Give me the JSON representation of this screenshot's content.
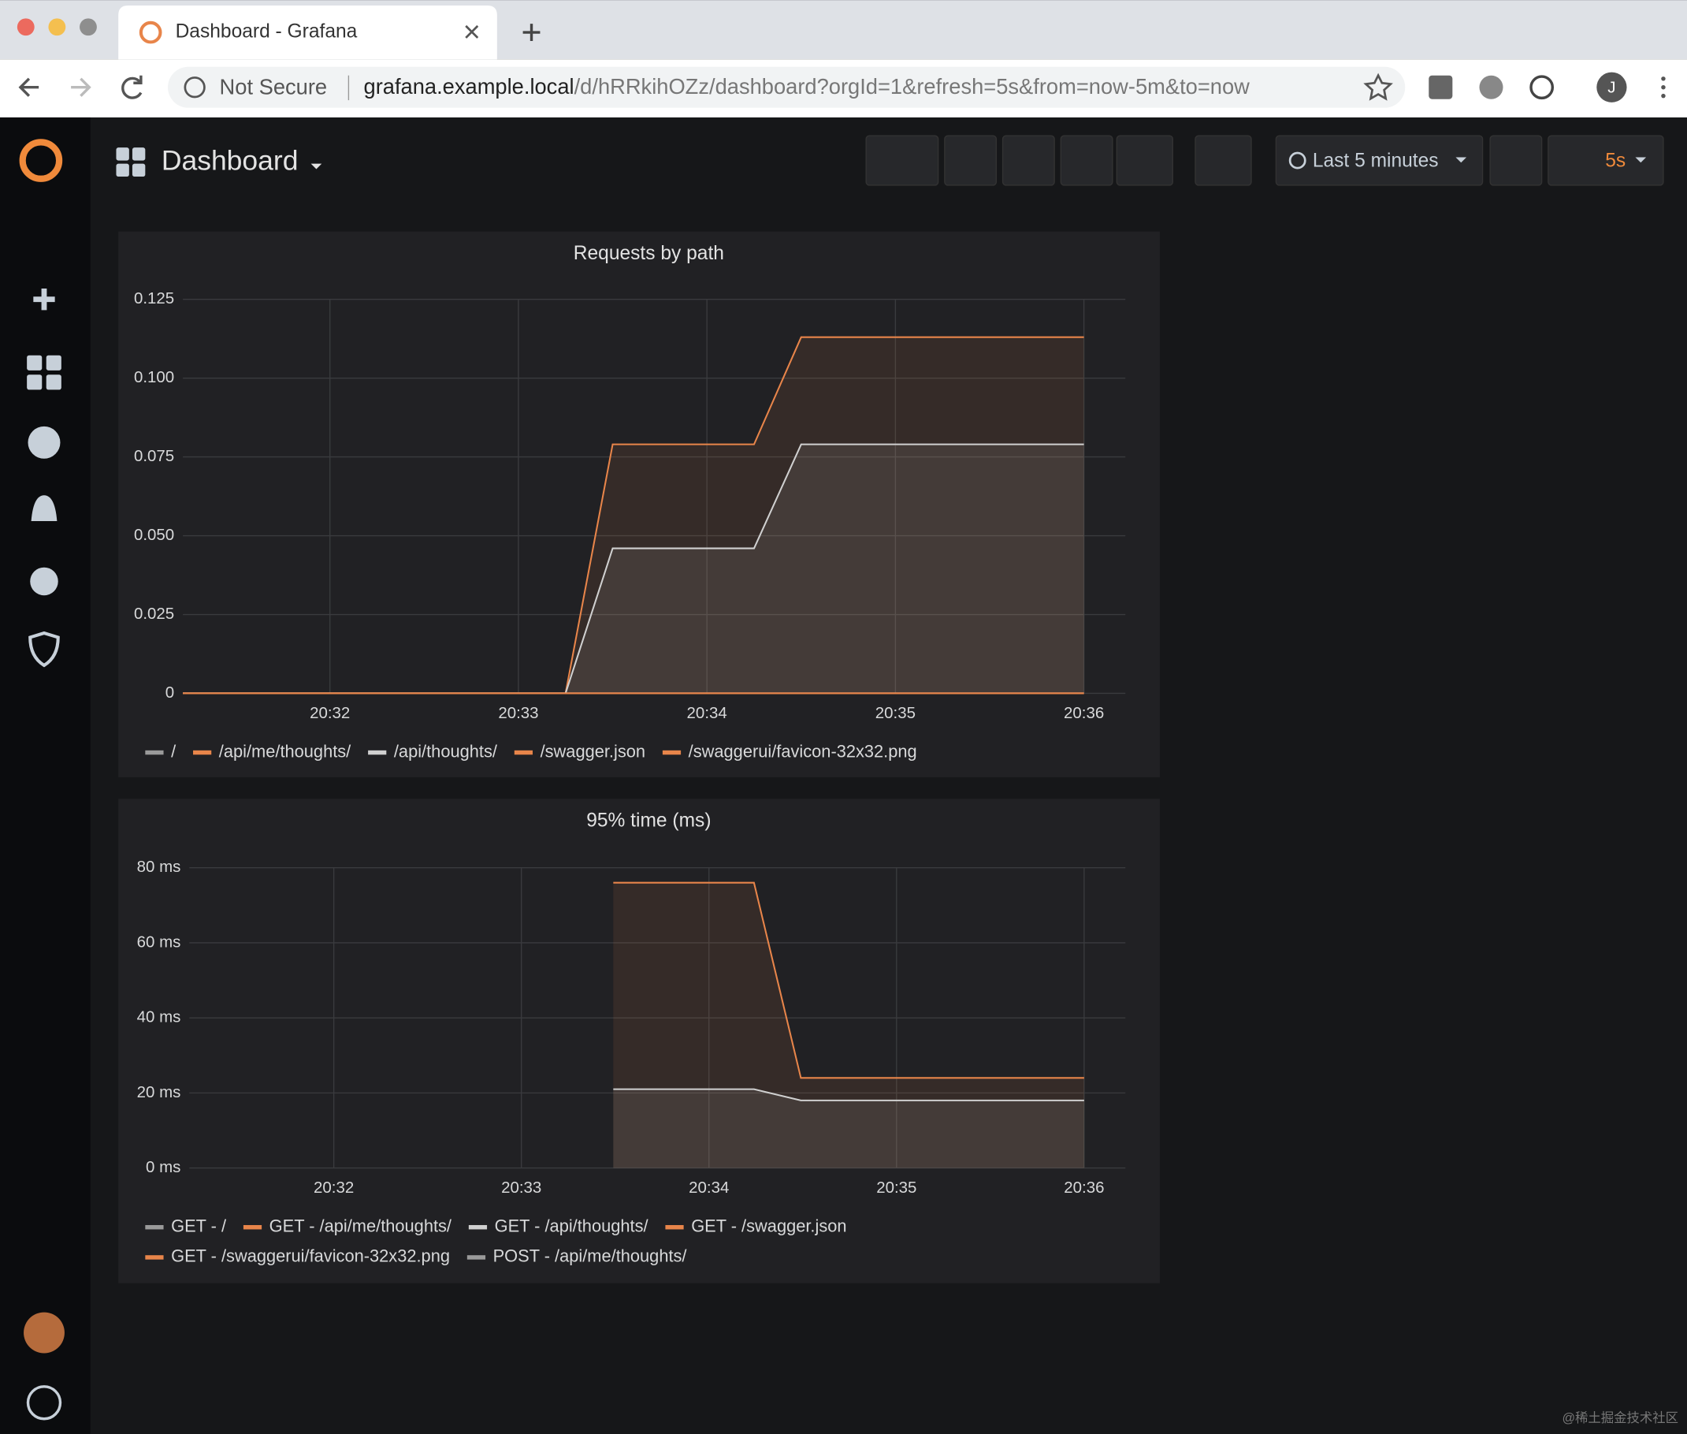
{
  "browser": {
    "tab_title": "Dashboard - Grafana",
    "not_secure": "Not Secure",
    "url_host": "grafana.example.local",
    "url_path": "/d/hRRkihOZz/dashboard?orgId=1&refresh=5s&from=now-5m&to=now",
    "avatar": "J"
  },
  "dashboard": {
    "title": "Dashboard",
    "time_range": "Last 5 minutes",
    "refresh": "5s"
  },
  "watermark": "@稀土掘金技术社区",
  "chart_data": [
    {
      "type": "line",
      "title": "Requests by path",
      "grid": true,
      "fill": true,
      "x": [
        31.22,
        33.25,
        33.5,
        34.25,
        34.5,
        36.0
      ],
      "xlim": [
        31.22,
        36.22
      ],
      "xticks": [
        {
          "value": 32,
          "label": "20:32"
        },
        {
          "value": 33,
          "label": "20:33"
        },
        {
          "value": 34,
          "label": "20:34"
        },
        {
          "value": 35,
          "label": "20:35"
        },
        {
          "value": 36,
          "label": "20:36"
        }
      ],
      "ylim": [
        0,
        0.125
      ],
      "yticks": [
        0,
        0.025,
        {
          "value": 0.05,
          "label": "0.050"
        },
        0.075,
        {
          "value": 0.1,
          "label": "0.100"
        },
        0.125
      ],
      "series": [
        {
          "name": "/",
          "color": "#9a9a9a",
          "values": [
            0,
            0,
            0,
            0,
            0,
            0
          ]
        },
        {
          "name": "/api/me/thoughts/",
          "color": "#e8854a",
          "values": [
            0,
            0,
            0.079,
            0.079,
            0.113,
            0.113
          ]
        },
        {
          "name": "/api/thoughts/",
          "color": "#d0d0d0",
          "values": [
            0,
            0,
            0.046,
            0.046,
            0.079,
            0.079
          ]
        },
        {
          "name": "/swagger.json",
          "color": "#e8854a",
          "values": [
            0,
            0,
            0,
            0,
            0,
            0
          ]
        },
        {
          "name": "/swaggerui/favicon-32x32.png",
          "color": "#e8854a",
          "values": [
            0,
            0,
            0,
            0,
            0,
            0
          ]
        }
      ]
    },
    {
      "type": "line",
      "title": "95% time (ms)",
      "grid": true,
      "fill": true,
      "x": [
        33.49,
        34.24,
        34.49,
        36.0
      ],
      "xlim": [
        31.23,
        36.22
      ],
      "xticks": [
        {
          "value": 32,
          "label": "20:32"
        },
        {
          "value": 33,
          "label": "20:33"
        },
        {
          "value": 34,
          "label": "20:34"
        },
        {
          "value": 35,
          "label": "20:35"
        },
        {
          "value": 36,
          "label": "20:36"
        }
      ],
      "ylim": [
        0,
        80
      ],
      "yticks": [
        {
          "value": 0,
          "label": "0 ms"
        },
        {
          "value": 20,
          "label": "20 ms"
        },
        {
          "value": 40,
          "label": "40 ms"
        },
        {
          "value": 60,
          "label": "60 ms"
        },
        {
          "value": 80,
          "label": "80 ms"
        }
      ],
      "series": [
        {
          "name": "GET - /",
          "color": "#9a9a9a",
          "values": [
            null,
            null,
            null,
            null
          ]
        },
        {
          "name": "GET - /api/me/thoughts/",
          "color": "#e8854a",
          "values": [
            76,
            76,
            24,
            24
          ]
        },
        {
          "name": "GET - /api/thoughts/",
          "color": "#d0d0d0",
          "values": [
            21,
            21,
            18,
            18
          ]
        },
        {
          "name": "GET - /swagger.json",
          "color": "#e8854a",
          "values": [
            null,
            null,
            null,
            null
          ]
        },
        {
          "name": "GET - /swaggerui/favicon-32x32.png",
          "color": "#e8854a",
          "values": [
            null,
            null,
            null,
            null
          ]
        },
        {
          "name": "POST - /api/me/thoughts/",
          "color": "#9a9a9a",
          "values": [
            null,
            null,
            null,
            null
          ]
        }
      ]
    }
  ]
}
